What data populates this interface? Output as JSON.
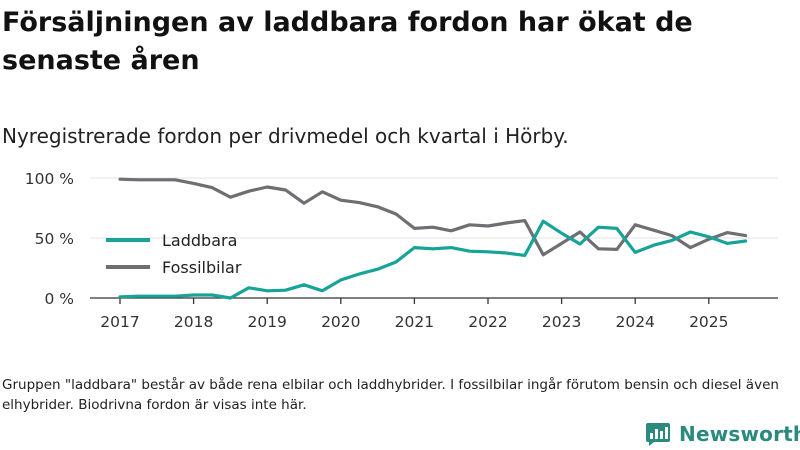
{
  "title": "Försäljningen av laddbara fordon har ökat de senaste åren",
  "subtitle": "Nyregistrerade fordon per drivmedel och kvartal i Hörby.",
  "footnote": "Gruppen \"laddbara\" består av både rena elbilar och laddhybrider. I fossilbilar ingår förutom bensin och diesel även elhybrider. Biodrivna fordon är visas inte här.",
  "brand": {
    "name": "Newsworthy",
    "icon": "newsworthy-logo-icon",
    "color": "#2a8a7e"
  },
  "chart_data": {
    "type": "line",
    "title": "Försäljningen av laddbara fordon har ökat de senaste åren",
    "xlabel": "",
    "ylabel": "",
    "ylim": [
      0,
      100
    ],
    "yticks": [
      0,
      50,
      100
    ],
    "ytick_labels": [
      "0 %",
      "50 %",
      "100 %"
    ],
    "xlim": [
      2017,
      2025.9
    ],
    "xticks": [
      2017,
      2018,
      2019,
      2020,
      2021,
      2022,
      2023,
      2024,
      2025
    ],
    "xtick_labels": [
      "2017",
      "2018",
      "2019",
      "2020",
      "2021",
      "2022",
      "2023",
      "2024",
      "2025"
    ],
    "grid": true,
    "legend_position": "left",
    "x": [
      2017.0,
      2017.25,
      2017.5,
      2017.75,
      2018.0,
      2018.25,
      2018.5,
      2018.75,
      2019.0,
      2019.25,
      2019.5,
      2019.75,
      2020.0,
      2020.25,
      2020.5,
      2020.75,
      2021.0,
      2021.25,
      2021.5,
      2021.75,
      2022.0,
      2022.25,
      2022.5,
      2022.75,
      2023.0,
      2023.25,
      2023.5,
      2023.75,
      2024.0,
      2024.25,
      2024.5,
      2024.75,
      2025.0,
      2025.25,
      2025.5
    ],
    "series": [
      {
        "name": "Laddbara",
        "color": "#17a398",
        "values": [
          1,
          1.5,
          1.5,
          1.5,
          2.5,
          2.5,
          0,
          8.5,
          6,
          6.5,
          11,
          6,
          15,
          20,
          24,
          30,
          42,
          41,
          42,
          39,
          38.5,
          37.5,
          35.5,
          64,
          54,
          45,
          59,
          58,
          38,
          44,
          48,
          55,
          51,
          45.5,
          47.5
        ]
      },
      {
        "name": "Fossilbilar",
        "color": "#6e6e73",
        "values": [
          99,
          98.5,
          98.5,
          98.5,
          95.5,
          92,
          84,
          89,
          92.5,
          90,
          79,
          88.5,
          81.5,
          79.5,
          76,
          70,
          58,
          59,
          56,
          61,
          60,
          62.5,
          64.5,
          36,
          45.5,
          55,
          41,
          40.5,
          61,
          56.5,
          52,
          42,
          49,
          54.5,
          52
        ]
      }
    ]
  }
}
